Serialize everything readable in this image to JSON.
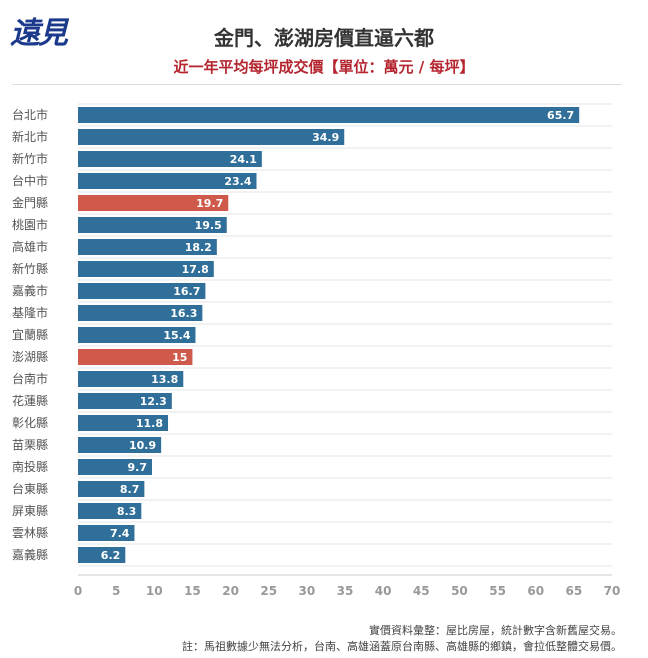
{
  "header": {
    "logo_text": "遠見",
    "title": "金門、澎湖房價直逼六都",
    "subtitle": "近一年平均每坪成交價【單位：萬元 / 每坪】"
  },
  "chart_data": {
    "type": "bar",
    "orientation": "horizontal",
    "categories": [
      "台北市",
      "新北市",
      "新竹市",
      "台中市",
      "金門縣",
      "桃園市",
      "高雄市",
      "新竹縣",
      "嘉義市",
      "基隆市",
      "宜蘭縣",
      "澎湖縣",
      "台南市",
      "花蓮縣",
      "彰化縣",
      "苗栗縣",
      "南投縣",
      "台東縣",
      "屏東縣",
      "雲林縣",
      "嘉義縣"
    ],
    "values": [
      65.7,
      34.9,
      24.1,
      23.4,
      19.7,
      19.5,
      18.2,
      17.8,
      16.7,
      16.3,
      15.4,
      15,
      13.8,
      12.3,
      11.8,
      10.9,
      9.7,
      8.7,
      8.3,
      7.4,
      6.2
    ],
    "value_labels": [
      "65.7",
      "34.9",
      "24.1",
      "23.4",
      "19.7",
      "19.5",
      "18.2",
      "17.8",
      "16.7",
      "16.3",
      "15.4",
      "15",
      "13.8",
      "12.3",
      "11.8",
      "10.9",
      "9.7",
      "8.7",
      "8.3",
      "7.4",
      "6.2"
    ],
    "highlighted": [
      "金門縣",
      "澎湖縣"
    ],
    "xlim": [
      0,
      70
    ],
    "xticks": [
      "0",
      "5",
      "10",
      "15",
      "20",
      "25",
      "30",
      "35",
      "40",
      "45",
      "50",
      "55",
      "60",
      "65",
      "70"
    ],
    "grid": "horizontal",
    "colors": {
      "default": "#2f6f9a",
      "highlight": "#cf5a4b"
    }
  },
  "notes": [
    "實價資料彙整：屋比房屋，統計數字含新舊屋交易。",
    "註：馬祖數據少無法分析，台南、高雄涵蓋原台南縣、高雄縣的鄉鎮，會拉低整體交易價。"
  ]
}
